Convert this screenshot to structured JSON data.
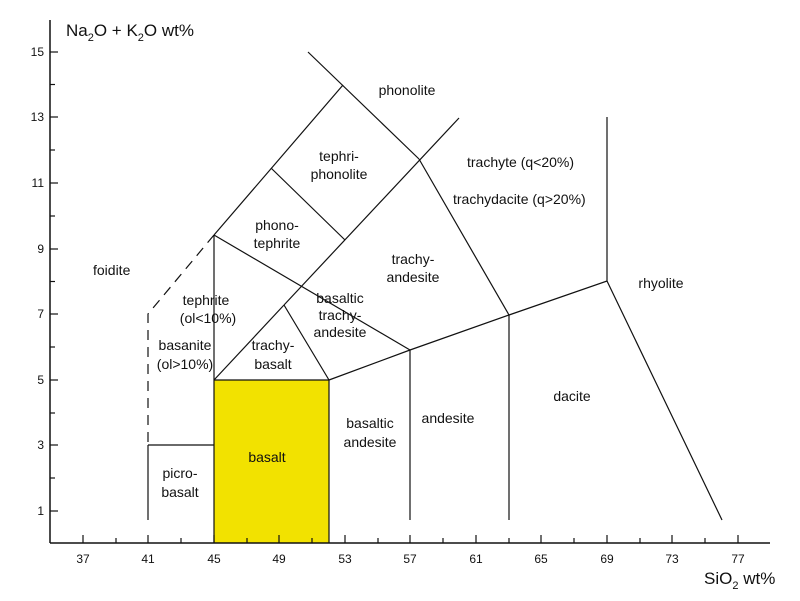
{
  "chart_data": {
    "type": "diagram",
    "y_axis": {
      "ticks": [
        "15",
        "13",
        "11",
        "9",
        "7",
        "5",
        "3",
        "1"
      ],
      "label": {
        "base1": "Na",
        "sub1": "2",
        "base2": "O + K",
        "sub2": "2",
        "base3": "O wt%"
      }
    },
    "x_axis": {
      "ticks": [
        "37",
        "41",
        "45",
        "49",
        "53",
        "57",
        "61",
        "65",
        "69",
        "73",
        "77"
      ],
      "label": {
        "base1": "SiO",
        "sub1": "2",
        "base2": " wt%"
      }
    },
    "highlight": {
      "field": "basalt",
      "color": "#f2e200",
      "x_range": [
        45,
        52
      ],
      "y_range": [
        0,
        5
      ]
    },
    "fields": {
      "foidite": [
        "foidite"
      ],
      "phonolite": [
        "phonolite"
      ],
      "tephriphonolite": [
        "tephri-",
        "phonolite"
      ],
      "phonotephrite": [
        "phono-",
        "tephrite"
      ],
      "tephrite": [
        "tephrite",
        "(ol<10%)"
      ],
      "basanite": [
        "basanite",
        "(ol>10%)"
      ],
      "trachybasalt": [
        "trachy-",
        "basalt"
      ],
      "basaltic_trachyandesite": [
        "basaltic",
        "trachy-",
        "andesite"
      ],
      "trachyandesite": [
        "trachy-",
        "andesite"
      ],
      "trachyte": [
        "trachyte (q<20%)"
      ],
      "trachydacite": [
        "trachydacite (q>20%)"
      ],
      "rhyolite": [
        "rhyolite"
      ],
      "picrobasalt": [
        "picro-",
        "basalt"
      ],
      "basalt": [
        "basalt"
      ],
      "basaltic_andesite": [
        "basaltic",
        "andesite"
      ],
      "andesite": [
        "andesite"
      ],
      "dacite": [
        "dacite"
      ]
    }
  }
}
